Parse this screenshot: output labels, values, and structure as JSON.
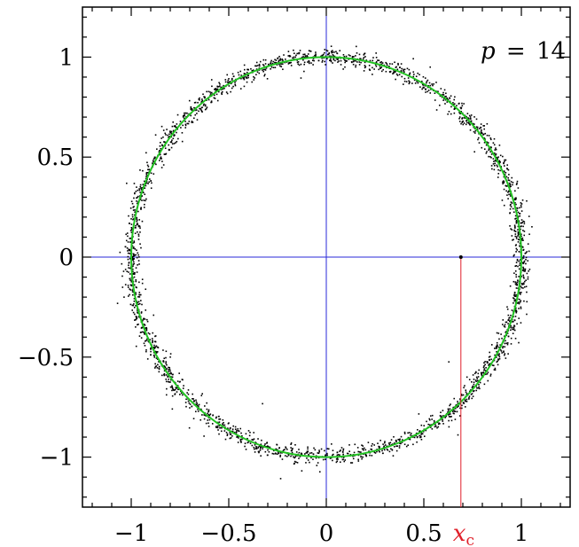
{
  "chart_data": {
    "type": "scatter",
    "title": "",
    "xlabel": "",
    "ylabel": "",
    "xlim": [
      -1.25,
      1.25
    ],
    "ylim": [
      -1.25,
      1.25
    ],
    "x_ticks": [
      {
        "value": -1,
        "label": "−1"
      },
      {
        "value": -0.5,
        "label": "−0.5"
      },
      {
        "value": 0,
        "label": "0"
      },
      {
        "value": 0.5,
        "label": "0.5"
      },
      {
        "value": 1,
        "label": "1"
      }
    ],
    "y_ticks": [
      {
        "value": 1,
        "label": "1"
      },
      {
        "value": 0.5,
        "label": "0.5"
      },
      {
        "value": 0,
        "label": "0"
      },
      {
        "value": -0.5,
        "label": "−0.5"
      },
      {
        "value": -1,
        "label": "−1"
      }
    ],
    "minor_tick_step": 0.1,
    "grid": false,
    "annotation": {
      "p_label": "p",
      "p_value": "14"
    },
    "reference_curve": {
      "shape": "unit circle",
      "radius": 1,
      "color": "#22c322"
    },
    "axes_lines": {
      "color": "#2a2ad8"
    },
    "scatter": {
      "count": 2600,
      "center_radius": 1.0,
      "radial_spread": 0.02,
      "color": "#000000"
    },
    "critical_point": {
      "x": 0.69,
      "y": 0,
      "label": "x",
      "subscript": "c",
      "color": "#e0202a"
    }
  }
}
